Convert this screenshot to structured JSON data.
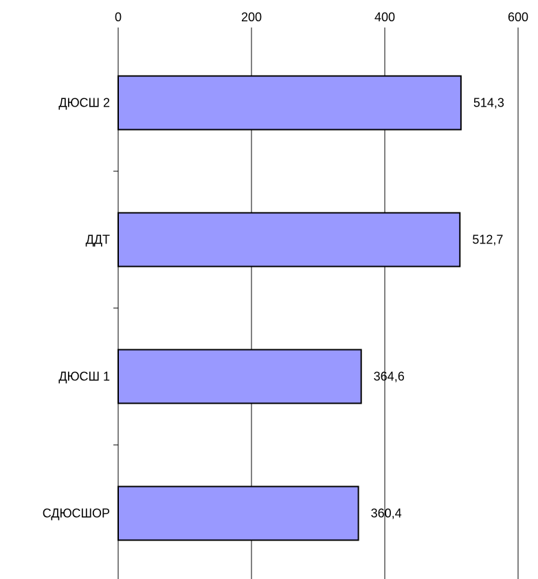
{
  "chart_data": {
    "type": "bar",
    "orientation": "horizontal",
    "categories": [
      "ДЮСШ 2",
      "ДДТ",
      "ДЮСШ 1",
      "СДЮСШОР"
    ],
    "values": [
      514.3,
      512.7,
      364.6,
      360.4
    ],
    "data_labels": [
      "514,3",
      "512,7",
      "364,6",
      "360,4"
    ],
    "x_ticks": [
      0,
      200,
      400,
      600
    ],
    "xlim": [
      0,
      600
    ],
    "x_axis_position": "top",
    "grid": true,
    "legend": "none",
    "title": "",
    "xlabel": "",
    "ylabel": "",
    "colors": {
      "bar_fill": "#9999ff",
      "bar_stroke": "#000000",
      "grid": "#000000",
      "background": "#ffffff"
    }
  }
}
